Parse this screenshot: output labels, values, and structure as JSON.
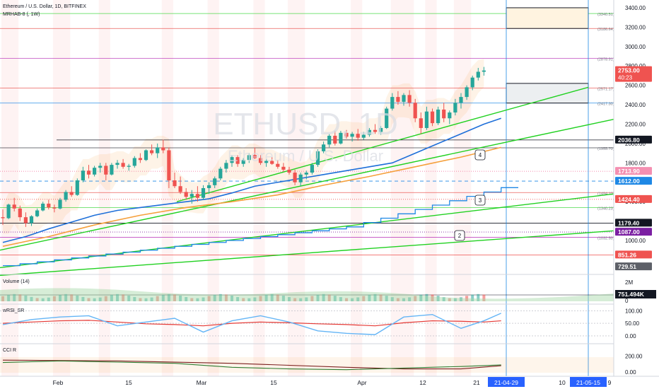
{
  "header": {
    "symbol_line": "Ethereum / U.S. Dollar, 1D, BITFINEX",
    "indicator_line": "MRHAB-8 (, 1W)"
  },
  "watermark": {
    "symbol": "ETHUSD, 1D",
    "name": "Ethereum / U.S. Dollar"
  },
  "colors": {
    "candle_up": "#26a69a",
    "candle_down": "#ef5350",
    "green_line": "#21d121",
    "blue_line": "#1e6fd9",
    "orange_line": "#f5a03c",
    "purple_line": "#b01db0",
    "red_line": "#e53935",
    "price_badge": "#ef5350",
    "blue_badge": "#2962ff"
  },
  "chart_data": [
    {
      "type": "candlestick",
      "title": "Ethereum / U.S. Dollar, 1D, BITFINEX",
      "x_labels": [
        "Feb",
        "15",
        "Mar",
        "15",
        "Apr",
        "12",
        "21",
        "21-04-29",
        "10",
        "21-05-15",
        "9"
      ],
      "y_ticks": [
        1000,
        1200,
        1400,
        1600,
        1800,
        2000,
        2200,
        2400,
        2600,
        2800,
        3000,
        3200,
        3400
      ],
      "y_range": [
        650,
        3480
      ],
      "grid": false,
      "current_price": "2753.00",
      "countdown": "40:23",
      "price_badges": [
        {
          "text": "2753.00",
          "sub": "40:23",
          "value": 2753,
          "color": "#ef5350",
          "text_color": "#ffffff"
        },
        {
          "text": "2036.80",
          "value": 2036.8,
          "color": "#131722",
          "text_color": "#ffffff"
        },
        {
          "text": "1713.90",
          "value": 1713.9,
          "color": "#f48fb1",
          "text_color": "#ffffff"
        },
        {
          "text": "1612.00",
          "value": 1612,
          "color": "#1e88e5",
          "text_color": "#ffffff"
        },
        {
          "text": "1424.40",
          "value": 1424.4,
          "color": "#ef5350",
          "text_color": "#ffffff"
        },
        {
          "text": "1179.40",
          "value": 1179.4,
          "color": "#131722",
          "text_color": "#ffffff"
        },
        {
          "text": "1087.00",
          "value": 1087,
          "color": "#7b1fa2",
          "text_color": "#ffffff"
        },
        {
          "text": "851.26",
          "value": 851.26,
          "color": "#ef5350",
          "text_color": "#ffffff"
        },
        {
          "text": "729.51",
          "value": 729.51,
          "color": "#5d6068",
          "text_color": "#ffffff"
        }
      ],
      "level_labels": [
        {
          "text": "(3340.51)",
          "value": 3340.51
        },
        {
          "text": "(3186.64)",
          "value": 3186.64
        },
        {
          "text": "(2878.91)",
          "value": 2878.91
        },
        {
          "text": "(2571.17)",
          "value": 2571.17
        },
        {
          "text": "(2417.30)",
          "value": 2417.3
        },
        {
          "text": "(1955.70)",
          "value": 1955.7
        },
        {
          "text": "(1494.10)",
          "value": 1494.1
        },
        {
          "text": "(1340.23)",
          "value": 1340.23
        },
        {
          "text": "(1032.50)",
          "value": 1032.5
        }
      ],
      "wave_labels": [
        "4",
        "3",
        "2"
      ],
      "candles": [
        {
          "o": 1240,
          "h": 1320,
          "l": 1160,
          "c": 1230
        },
        {
          "o": 1230,
          "h": 1380,
          "l": 1220,
          "c": 1370
        },
        {
          "o": 1370,
          "h": 1440,
          "l": 1300,
          "c": 1330
        },
        {
          "o": 1330,
          "h": 1360,
          "l": 1200,
          "c": 1240
        },
        {
          "o": 1240,
          "h": 1290,
          "l": 1140,
          "c": 1180
        },
        {
          "o": 1180,
          "h": 1260,
          "l": 1150,
          "c": 1250
        },
        {
          "o": 1250,
          "h": 1330,
          "l": 1240,
          "c": 1310
        },
        {
          "o": 1310,
          "h": 1400,
          "l": 1300,
          "c": 1380
        },
        {
          "o": 1380,
          "h": 1420,
          "l": 1320,
          "c": 1340
        },
        {
          "o": 1340,
          "h": 1370,
          "l": 1290,
          "c": 1330
        },
        {
          "o": 1330,
          "h": 1440,
          "l": 1320,
          "c": 1420
        },
        {
          "o": 1420,
          "h": 1520,
          "l": 1400,
          "c": 1500
        },
        {
          "o": 1500,
          "h": 1560,
          "l": 1450,
          "c": 1470
        },
        {
          "o": 1470,
          "h": 1640,
          "l": 1460,
          "c": 1620
        },
        {
          "o": 1620,
          "h": 1760,
          "l": 1600,
          "c": 1720
        },
        {
          "o": 1720,
          "h": 1780,
          "l": 1640,
          "c": 1680
        },
        {
          "o": 1680,
          "h": 1770,
          "l": 1660,
          "c": 1750
        },
        {
          "o": 1750,
          "h": 1800,
          "l": 1700,
          "c": 1770
        },
        {
          "o": 1770,
          "h": 1800,
          "l": 1620,
          "c": 1680
        },
        {
          "o": 1680,
          "h": 1800,
          "l": 1670,
          "c": 1780
        },
        {
          "o": 1780,
          "h": 1830,
          "l": 1740,
          "c": 1800
        },
        {
          "o": 1800,
          "h": 1840,
          "l": 1740,
          "c": 1760
        },
        {
          "o": 1760,
          "h": 1790,
          "l": 1720,
          "c": 1770
        },
        {
          "o": 1770,
          "h": 1870,
          "l": 1750,
          "c": 1850
        },
        {
          "o": 1850,
          "h": 1900,
          "l": 1800,
          "c": 1830
        },
        {
          "o": 1830,
          "h": 1940,
          "l": 1820,
          "c": 1930
        },
        {
          "o": 1930,
          "h": 1990,
          "l": 1880,
          "c": 1900
        },
        {
          "o": 1900,
          "h": 2000,
          "l": 1850,
          "c": 1960
        },
        {
          "o": 1960,
          "h": 2040,
          "l": 1900,
          "c": 1930
        },
        {
          "o": 1930,
          "h": 1960,
          "l": 1540,
          "c": 1620
        },
        {
          "o": 1620,
          "h": 1700,
          "l": 1540,
          "c": 1560
        },
        {
          "o": 1560,
          "h": 1660,
          "l": 1480,
          "c": 1500
        },
        {
          "o": 1500,
          "h": 1540,
          "l": 1420,
          "c": 1450
        },
        {
          "o": 1450,
          "h": 1520,
          "l": 1380,
          "c": 1480
        },
        {
          "o": 1480,
          "h": 1560,
          "l": 1400,
          "c": 1440
        },
        {
          "o": 1440,
          "h": 1570,
          "l": 1420,
          "c": 1540
        },
        {
          "o": 1540,
          "h": 1600,
          "l": 1480,
          "c": 1570
        },
        {
          "o": 1570,
          "h": 1660,
          "l": 1540,
          "c": 1640
        },
        {
          "o": 1640,
          "h": 1760,
          "l": 1620,
          "c": 1740
        },
        {
          "o": 1740,
          "h": 1830,
          "l": 1700,
          "c": 1800
        },
        {
          "o": 1800,
          "h": 1880,
          "l": 1760,
          "c": 1860
        },
        {
          "o": 1860,
          "h": 1880,
          "l": 1760,
          "c": 1790
        },
        {
          "o": 1790,
          "h": 1850,
          "l": 1760,
          "c": 1830
        },
        {
          "o": 1830,
          "h": 1900,
          "l": 1800,
          "c": 1880
        },
        {
          "o": 1880,
          "h": 1960,
          "l": 1840,
          "c": 1850
        },
        {
          "o": 1850,
          "h": 1880,
          "l": 1780,
          "c": 1800
        },
        {
          "o": 1800,
          "h": 1840,
          "l": 1760,
          "c": 1820
        },
        {
          "o": 1820,
          "h": 1860,
          "l": 1780,
          "c": 1790
        },
        {
          "o": 1790,
          "h": 1830,
          "l": 1740,
          "c": 1760
        },
        {
          "o": 1760,
          "h": 1800,
          "l": 1710,
          "c": 1730
        },
        {
          "o": 1730,
          "h": 1760,
          "l": 1680,
          "c": 1700
        },
        {
          "o": 1700,
          "h": 1730,
          "l": 1570,
          "c": 1600
        },
        {
          "o": 1600,
          "h": 1700,
          "l": 1560,
          "c": 1680
        },
        {
          "o": 1680,
          "h": 1720,
          "l": 1630,
          "c": 1700
        },
        {
          "o": 1700,
          "h": 1800,
          "l": 1680,
          "c": 1780
        },
        {
          "o": 1780,
          "h": 1940,
          "l": 1760,
          "c": 1920
        },
        {
          "o": 1920,
          "h": 2020,
          "l": 1900,
          "c": 1990
        },
        {
          "o": 1990,
          "h": 2100,
          "l": 1960,
          "c": 2080
        },
        {
          "o": 2080,
          "h": 2130,
          "l": 1980,
          "c": 2000
        },
        {
          "o": 2000,
          "h": 2130,
          "l": 1990,
          "c": 2110
        },
        {
          "o": 2110,
          "h": 2140,
          "l": 2050,
          "c": 2070
        },
        {
          "o": 2070,
          "h": 2120,
          "l": 2020,
          "c": 2100
        },
        {
          "o": 2100,
          "h": 2150,
          "l": 2030,
          "c": 2060
        },
        {
          "o": 2060,
          "h": 2120,
          "l": 2040,
          "c": 2090
        },
        {
          "o": 2090,
          "h": 2160,
          "l": 2070,
          "c": 2140
        },
        {
          "o": 2140,
          "h": 2200,
          "l": 2100,
          "c": 2120
        },
        {
          "o": 2120,
          "h": 2180,
          "l": 2090,
          "c": 2160
        },
        {
          "o": 2160,
          "h": 2380,
          "l": 2150,
          "c": 2360
        },
        {
          "o": 2360,
          "h": 2520,
          "l": 2340,
          "c": 2480
        },
        {
          "o": 2480,
          "h": 2540,
          "l": 2400,
          "c": 2430
        },
        {
          "o": 2430,
          "h": 2520,
          "l": 2390,
          "c": 2500
        },
        {
          "o": 2500,
          "h": 2550,
          "l": 2380,
          "c": 2420
        },
        {
          "o": 2420,
          "h": 2460,
          "l": 2220,
          "c": 2260
        },
        {
          "o": 2260,
          "h": 2320,
          "l": 2100,
          "c": 2160
        },
        {
          "o": 2160,
          "h": 2380,
          "l": 2140,
          "c": 2330
        },
        {
          "o": 2330,
          "h": 2360,
          "l": 2180,
          "c": 2210
        },
        {
          "o": 2210,
          "h": 2380,
          "l": 2190,
          "c": 2350
        },
        {
          "o": 2350,
          "h": 2420,
          "l": 2220,
          "c": 2260
        },
        {
          "o": 2260,
          "h": 2340,
          "l": 2200,
          "c": 2320
        },
        {
          "o": 2320,
          "h": 2460,
          "l": 2290,
          "c": 2420
        },
        {
          "o": 2420,
          "h": 2520,
          "l": 2360,
          "c": 2480
        },
        {
          "o": 2480,
          "h": 2600,
          "l": 2450,
          "c": 2580
        },
        {
          "o": 2580,
          "h": 2700,
          "l": 2550,
          "c": 2680
        },
        {
          "o": 2680,
          "h": 2780,
          "l": 2650,
          "c": 2740
        },
        {
          "o": 2740,
          "h": 2790,
          "l": 2700,
          "c": 2753
        }
      ],
      "series": [
        {
          "name": "",
          "color": "#1e6fd9",
          "values": [
            [
              0,
              980
            ],
            [
              4,
              1040
            ],
            [
              8,
              1120
            ],
            [
              12,
              1190
            ],
            [
              16,
              1260
            ],
            [
              20,
              1310
            ],
            [
              24,
              1340
            ],
            [
              28,
              1370
            ],
            [
              32,
              1400
            ],
            [
              36,
              1430
            ],
            [
              40,
              1490
            ],
            [
              44,
              1560
            ],
            [
              48,
              1600
            ],
            [
              52,
              1640
            ],
            [
              56,
              1680
            ],
            [
              60,
              1720
            ],
            [
              64,
              1760
            ],
            [
              68,
              1800
            ],
            [
              72,
              1900
            ],
            [
              76,
              2000
            ],
            [
              80,
              2100
            ],
            [
              84,
              2200
            ],
            [
              87,
              2260
            ]
          ]
        },
        {
          "name": "",
          "color": "#f5a03c",
          "values": [
            [
              0,
              940
            ],
            [
              8,
              1040
            ],
            [
              16,
              1160
            ],
            [
              24,
              1260
            ],
            [
              32,
              1340
            ],
            [
              40,
              1400
            ],
            [
              48,
              1470
            ],
            [
              56,
              1570
            ],
            [
              64,
              1660
            ],
            [
              72,
              1760
            ],
            [
              80,
              1860
            ],
            [
              87,
              1960
            ]
          ]
        }
      ]
    },
    {
      "type": "histogram",
      "title": "Volume (14)",
      "y_ticks": [
        "2M",
        "0"
      ],
      "last_value": "751.494K"
    },
    {
      "type": "line",
      "title": "wRSI_SR",
      "y_ticks": [
        100,
        50,
        0
      ],
      "y_range": [
        -20,
        115
      ],
      "series": [
        {
          "name": "",
          "color": "#e53935",
          "values": [
            [
              0,
              50
            ],
            [
              5,
              55
            ],
            [
              10,
              60
            ],
            [
              15,
              62
            ],
            [
              20,
              55
            ],
            [
              25,
              48
            ],
            [
              30,
              45
            ],
            [
              35,
              40
            ],
            [
              40,
              50
            ],
            [
              45,
              55
            ],
            [
              50,
              52
            ],
            [
              55,
              48
            ],
            [
              60,
              45
            ],
            [
              65,
              40
            ],
            [
              70,
              52
            ],
            [
              75,
              60
            ],
            [
              80,
              58
            ],
            [
              84,
              55
            ],
            [
              87,
              60
            ]
          ]
        },
        {
          "name": "",
          "color": "#64b5f6",
          "values": [
            [
              0,
              45
            ],
            [
              5,
              65
            ],
            [
              10,
              75
            ],
            [
              15,
              80
            ],
            [
              20,
              40
            ],
            [
              25,
              55
            ],
            [
              30,
              70
            ],
            [
              35,
              15
            ],
            [
              40,
              60
            ],
            [
              45,
              80
            ],
            [
              50,
              55
            ],
            [
              55,
              20
            ],
            [
              60,
              10
            ],
            [
              65,
              5
            ],
            [
              70,
              75
            ],
            [
              75,
              85
            ],
            [
              80,
              30
            ],
            [
              84,
              60
            ],
            [
              87,
              90
            ]
          ]
        }
      ]
    },
    {
      "type": "line",
      "title": "CCI R",
      "y_ticks": [
        200,
        0
      ],
      "series": [
        {
          "name": "",
          "color": "#7b1f1f",
          "values": [
            [
              0,
              150
            ],
            [
              20,
              140
            ],
            [
              40,
              110
            ],
            [
              60,
              60
            ],
            [
              70,
              40
            ],
            [
              80,
              40
            ],
            [
              87,
              80
            ]
          ]
        },
        {
          "name": "",
          "color": "#2e7d32",
          "values": [
            [
              0,
              120
            ],
            [
              10,
              140
            ],
            [
              20,
              125
            ],
            [
              30,
              110
            ],
            [
              40,
              60
            ],
            [
              50,
              40
            ],
            [
              60,
              30
            ],
            [
              70,
              50
            ],
            [
              80,
              70
            ],
            [
              87,
              90
            ]
          ]
        }
      ]
    }
  ]
}
